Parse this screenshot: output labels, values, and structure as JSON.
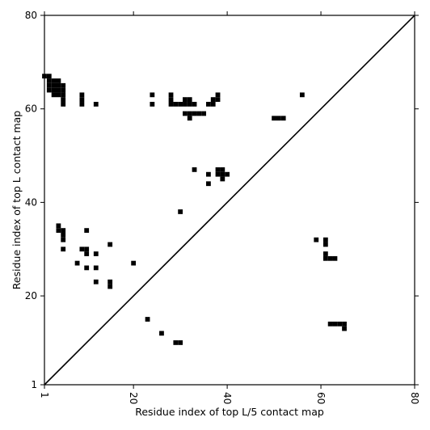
{
  "chart_data": {
    "type": "heatmap",
    "title": "",
    "xlabel": "Residue index of top L/5 contact map",
    "ylabel": "Residue index of top L contact map",
    "xlim": [
      1,
      80
    ],
    "ylim": [
      1,
      80
    ],
    "x_ticks": [
      1,
      20,
      40,
      60,
      80
    ],
    "y_ticks": [
      1,
      20,
      40,
      60,
      80
    ],
    "x_tick_labels": [
      "1",
      "20",
      "40",
      "60",
      "80"
    ],
    "y_tick_labels": [
      "1",
      "20",
      "40",
      "60",
      "80"
    ],
    "diagonal": true,
    "grid": false,
    "cell_color": "#000000",
    "upper_triangle_cells": [
      [
        1,
        67
      ],
      [
        2,
        67
      ],
      [
        2,
        64
      ],
      [
        3,
        64
      ],
      [
        2,
        65
      ],
      [
        3,
        65
      ],
      [
        4,
        65
      ],
      [
        5,
        65
      ],
      [
        2,
        66
      ],
      [
        3,
        66
      ],
      [
        4,
        66
      ],
      [
        3,
        63
      ],
      [
        4,
        63
      ],
      [
        5,
        63
      ],
      [
        4,
        64
      ],
      [
        5,
        64
      ],
      [
        5,
        62
      ],
      [
        5,
        61
      ],
      [
        9,
        63
      ],
      [
        9,
        62
      ],
      [
        9,
        61
      ],
      [
        12,
        61
      ],
      [
        24,
        63
      ],
      [
        24,
        61
      ],
      [
        28,
        63
      ],
      [
        28,
        62
      ],
      [
        28,
        61
      ],
      [
        29,
        61
      ],
      [
        30,
        61
      ],
      [
        31,
        61
      ],
      [
        32,
        61
      ],
      [
        31,
        62
      ],
      [
        32,
        62
      ],
      [
        33,
        61
      ],
      [
        31,
        59
      ],
      [
        32,
        59
      ],
      [
        33,
        59
      ],
      [
        34,
        59
      ],
      [
        35,
        59
      ],
      [
        32,
        58
      ],
      [
        36,
        61
      ],
      [
        37,
        61
      ],
      [
        37,
        62
      ],
      [
        38,
        62
      ],
      [
        38,
        63
      ],
      [
        56,
        63
      ],
      [
        50,
        58
      ],
      [
        51,
        58
      ],
      [
        52,
        58
      ],
      [
        33,
        47
      ],
      [
        38,
        47
      ],
      [
        39,
        47
      ],
      [
        38,
        46
      ],
      [
        39,
        46
      ],
      [
        40,
        46
      ],
      [
        36,
        46
      ],
      [
        39,
        45
      ],
      [
        36,
        44
      ],
      [
        30,
        38
      ],
      [
        4,
        35
      ],
      [
        4,
        34
      ],
      [
        5,
        34
      ],
      [
        5,
        33
      ],
      [
        5,
        32
      ],
      [
        10,
        34
      ],
      [
        9,
        30
      ],
      [
        10,
        30
      ],
      [
        5,
        30
      ],
      [
        10,
        29
      ],
      [
        12,
        29
      ],
      [
        15,
        31
      ],
      [
        8,
        27
      ],
      [
        10,
        26
      ],
      [
        12,
        26
      ],
      [
        20,
        27
      ],
      [
        12,
        23
      ],
      [
        15,
        23
      ],
      [
        15,
        22
      ]
    ],
    "lower_triangle_cells": [
      [
        23,
        15
      ],
      [
        26,
        12
      ],
      [
        29,
        10
      ],
      [
        30,
        10
      ],
      [
        59,
        32
      ],
      [
        61,
        32
      ],
      [
        61,
        31
      ],
      [
        61,
        29
      ],
      [
        61,
        28
      ],
      [
        62,
        28
      ],
      [
        63,
        28
      ],
      [
        62,
        14
      ],
      [
        63,
        14
      ],
      [
        64,
        14
      ],
      [
        65,
        14
      ],
      [
        65,
        13
      ]
    ]
  }
}
